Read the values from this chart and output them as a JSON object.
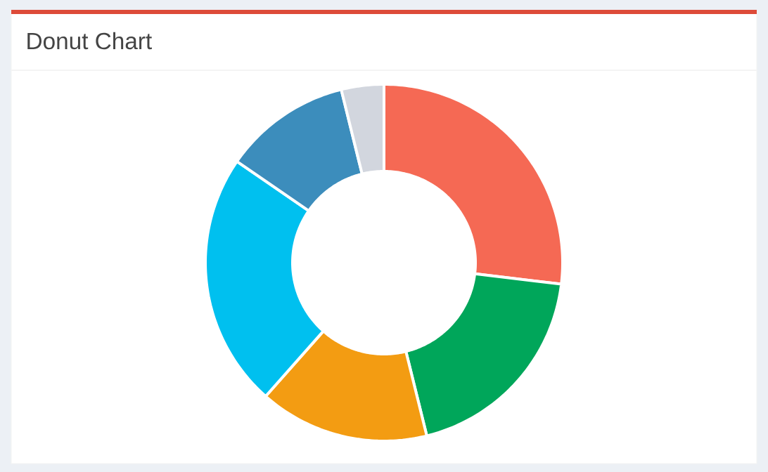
{
  "chart_data": {
    "type": "donut",
    "title": "Donut Chart",
    "categories": [
      null,
      null,
      null,
      null,
      null,
      null
    ],
    "values": [
      26.92,
      19.23,
      15.38,
      23.08,
      11.54,
      3.85
    ],
    "colors": [
      "#f56954",
      "#00a65a",
      "#f39c12",
      "#00c0ef",
      "#3c8dbc",
      "#d2d6de"
    ]
  }
}
